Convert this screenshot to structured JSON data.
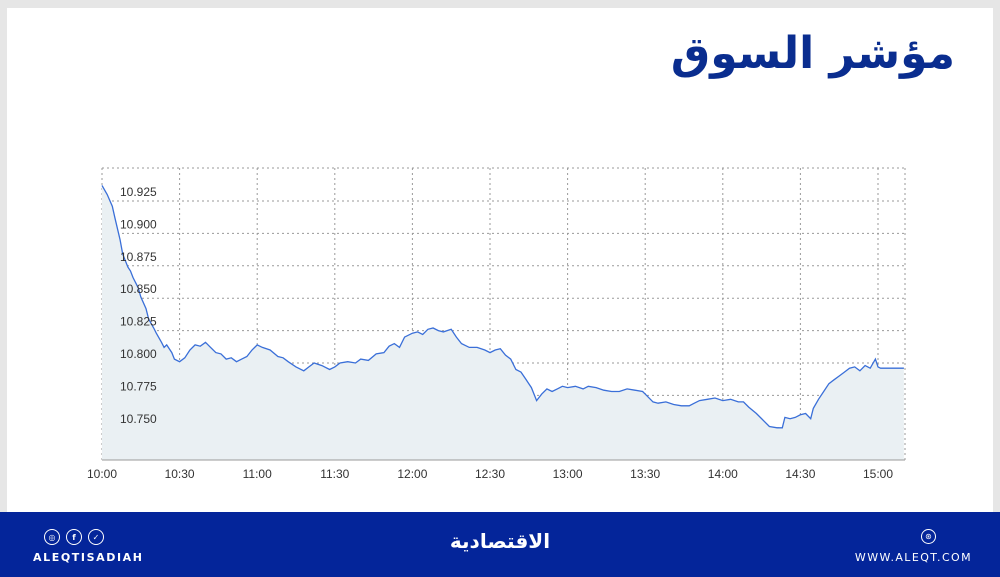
{
  "title": "مؤشر السوق",
  "footer": {
    "social_icons": [
      "instagram-icon",
      "facebook-icon",
      "twitter-icon"
    ],
    "social_glyphs": [
      "◎",
      "f",
      "✓"
    ],
    "handle": "ALEQTISADIAH",
    "logo_text": "الاقتصادية",
    "website_icon": "⊛",
    "website": "WWW.ALEQT.COM",
    "background_color": "#04259a"
  },
  "chart_data": {
    "type": "area",
    "title": "مؤشر السوق",
    "xlabel": "",
    "ylabel": "",
    "x_ticks": [
      "10:00",
      "10:30",
      "11:00",
      "11:30",
      "12:00",
      "12:30",
      "13:00",
      "13:30",
      "14:00",
      "14:30",
      "15:00"
    ],
    "y_ticks": [
      "10.925",
      "10.900",
      "10.875",
      "10.850",
      "10.825",
      "10.800",
      "10.775",
      "10.750"
    ],
    "ylim": [
      10.725,
      10.95
    ],
    "xlim_minutes_from_10": [
      0,
      310
    ],
    "grid": true,
    "legend": null,
    "line_color": "#3a6fd8",
    "fill_color": "#eaf0f3",
    "series": [
      {
        "name": "Market index",
        "points": [
          [
            0,
            10.937
          ],
          [
            2,
            10.93
          ],
          [
            4,
            10.921
          ],
          [
            5,
            10.912
          ],
          [
            7,
            10.895
          ],
          [
            8,
            10.884
          ],
          [
            10,
            10.874
          ],
          [
            11,
            10.871
          ],
          [
            12,
            10.866
          ],
          [
            14,
            10.858
          ],
          [
            15,
            10.851
          ],
          [
            17,
            10.842
          ],
          [
            18,
            10.834
          ],
          [
            20,
            10.827
          ],
          [
            21,
            10.823
          ],
          [
            23,
            10.816
          ],
          [
            24,
            10.812
          ],
          [
            25,
            10.814
          ],
          [
            27,
            10.808
          ],
          [
            28,
            10.803
          ],
          [
            30,
            10.801
          ],
          [
            32,
            10.804
          ],
          [
            34,
            10.81
          ],
          [
            36,
            10.814
          ],
          [
            38,
            10.813
          ],
          [
            40,
            10.816
          ],
          [
            42,
            10.812
          ],
          [
            44,
            10.808
          ],
          [
            46,
            10.807
          ],
          [
            48,
            10.803
          ],
          [
            50,
            10.804
          ],
          [
            52,
            10.801
          ],
          [
            54,
            10.803
          ],
          [
            56,
            10.805
          ],
          [
            58,
            10.81
          ],
          [
            60,
            10.814
          ],
          [
            62,
            10.812
          ],
          [
            65,
            10.81
          ],
          [
            68,
            10.805
          ],
          [
            70,
            10.804
          ],
          [
            72,
            10.801
          ],
          [
            75,
            10.797
          ],
          [
            78,
            10.794
          ],
          [
            80,
            10.797
          ],
          [
            82,
            10.8
          ],
          [
            85,
            10.798
          ],
          [
            88,
            10.795
          ],
          [
            90,
            10.797
          ],
          [
            92,
            10.8
          ],
          [
            95,
            10.801
          ],
          [
            98,
            10.8
          ],
          [
            100,
            10.803
          ],
          [
            103,
            10.802
          ],
          [
            106,
            10.807
          ],
          [
            109,
            10.808
          ],
          [
            111,
            10.813
          ],
          [
            113,
            10.815
          ],
          [
            115,
            10.812
          ],
          [
            117,
            10.82
          ],
          [
            120,
            10.823
          ],
          [
            122,
            10.824
          ],
          [
            124,
            10.822
          ],
          [
            126,
            10.826
          ],
          [
            128,
            10.827
          ],
          [
            130,
            10.825
          ],
          [
            132,
            10.824
          ],
          [
            135,
            10.826
          ],
          [
            137,
            10.82
          ],
          [
            139,
            10.815
          ],
          [
            142,
            10.812
          ],
          [
            145,
            10.812
          ],
          [
            148,
            10.81
          ],
          [
            150,
            10.808
          ],
          [
            152,
            10.81
          ],
          [
            154,
            10.811
          ],
          [
            156,
            10.806
          ],
          [
            158,
            10.803
          ],
          [
            160,
            10.795
          ],
          [
            162,
            10.793
          ],
          [
            164,
            10.787
          ],
          [
            166,
            10.781
          ],
          [
            168,
            10.771
          ],
          [
            170,
            10.776
          ],
          [
            172,
            10.78
          ],
          [
            174,
            10.778
          ],
          [
            176,
            10.78
          ],
          [
            178,
            10.782
          ],
          [
            180,
            10.781
          ],
          [
            183,
            10.782
          ],
          [
            186,
            10.78
          ],
          [
            188,
            10.782
          ],
          [
            191,
            10.781
          ],
          [
            194,
            10.779
          ],
          [
            197,
            10.778
          ],
          [
            200,
            10.778
          ],
          [
            203,
            10.78
          ],
          [
            206,
            10.779
          ],
          [
            209,
            10.778
          ],
          [
            210,
            10.776
          ],
          [
            213,
            10.77
          ],
          [
            215,
            10.769
          ],
          [
            218,
            10.77
          ],
          [
            221,
            10.768
          ],
          [
            224,
            10.767
          ],
          [
            227,
            10.767
          ],
          [
            229,
            10.769
          ],
          [
            231,
            10.771
          ],
          [
            234,
            10.772
          ],
          [
            237,
            10.773
          ],
          [
            240,
            10.771
          ],
          [
            243,
            10.772
          ],
          [
            246,
            10.77
          ],
          [
            248,
            10.77
          ],
          [
            250,
            10.766
          ],
          [
            253,
            10.761
          ],
          [
            256,
            10.755
          ],
          [
            258,
            10.751
          ],
          [
            261,
            10.75
          ],
          [
            263,
            10.75
          ],
          [
            264,
            10.758
          ],
          [
            266,
            10.757
          ],
          [
            268,
            10.758
          ],
          [
            270,
            10.76
          ],
          [
            272,
            10.761
          ],
          [
            274,
            10.757
          ],
          [
            275,
            10.765
          ],
          [
            277,
            10.772
          ],
          [
            279,
            10.778
          ],
          [
            281,
            10.784
          ],
          [
            283,
            10.787
          ],
          [
            285,
            10.79
          ],
          [
            287,
            10.793
          ],
          [
            289,
            10.796
          ],
          [
            291,
            10.797
          ],
          [
            293,
            10.794
          ],
          [
            295,
            10.798
          ],
          [
            297,
            10.796
          ],
          [
            299,
            10.803
          ],
          [
            300,
            10.797
          ],
          [
            301,
            10.796
          ],
          [
            310,
            10.796
          ]
        ]
      }
    ]
  }
}
